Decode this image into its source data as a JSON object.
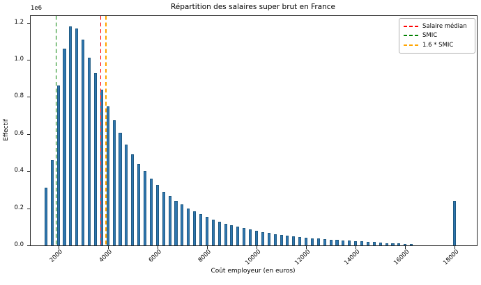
{
  "figure": {
    "title": "Répartition des salaires super brut en France",
    "xlabel": "Coût employeur (en euros)",
    "ylabel": "Effectif",
    "y_offset_label": "1e6",
    "background_color": "#ffffff",
    "spine_color": "#222222"
  },
  "chart_data": {
    "type": "bar",
    "title": "Répartition des salaires super brut en France",
    "xlabel": "Coût employeur (en euros)",
    "ylabel": "Effectif",
    "y_scale_offset": "1e6",
    "xlim": [
      885,
      18890
    ],
    "ylim": [
      0,
      1236000
    ],
    "grid": false,
    "x_ticks": [
      2000,
      4000,
      6000,
      8000,
      10000,
      12000,
      14000,
      16000,
      18000
    ],
    "x_tick_labels": [
      "2000",
      "4000",
      "6000",
      "8000",
      "10000",
      "12000",
      "14000",
      "16000",
      "18000"
    ],
    "y_ticks": [
      0,
      200000,
      400000,
      600000,
      800000,
      1000000,
      1200000
    ],
    "y_tick_labels": [
      "0.0",
      "0.2",
      "0.4",
      "0.6",
      "0.8",
      "1.0",
      "1.2"
    ],
    "bin_width": 250,
    "bar_draw_width": 115,
    "bar_color": "#3076af",
    "bar_edge_color": "#1f5a82",
    "bars": {
      "centers": [
        1500,
        1750,
        2000,
        2250,
        2500,
        2750,
        3000,
        3250,
        3500,
        3750,
        4000,
        4250,
        4500,
        4750,
        5000,
        5250,
        5500,
        5750,
        6000,
        6250,
        6500,
        6750,
        7000,
        7250,
        7500,
        7750,
        8000,
        8250,
        8500,
        8750,
        9000,
        9250,
        9500,
        9750,
        10000,
        10250,
        10500,
        10750,
        11000,
        11250,
        11500,
        11750,
        12000,
        12250,
        12500,
        12750,
        13000,
        13250,
        13500,
        13750,
        14000,
        14250,
        14500,
        14750,
        15000,
        15250,
        15500,
        15750,
        16000,
        16250,
        18000
      ],
      "counts": [
        310000,
        460000,
        860000,
        1060000,
        1180000,
        1170000,
        1110000,
        1010000,
        930000,
        840000,
        750000,
        675000,
        605000,
        545000,
        490000,
        440000,
        400000,
        360000,
        325000,
        290000,
        265000,
        240000,
        220000,
        200000,
        182000,
        167000,
        152000,
        139000,
        128000,
        118000,
        108000,
        100000,
        92000,
        85000,
        78000,
        72000,
        66000,
        61000,
        57000,
        53000,
        49000,
        45000,
        42000,
        39000,
        36000,
        33000,
        31000,
        29000,
        27000,
        25000,
        23000,
        21000,
        19000,
        17000,
        15000,
        13000,
        12000,
        10000,
        9000,
        8000,
        240000
      ]
    },
    "vlines": [
      {
        "key": "salaire-median",
        "label": "Salaire médian",
        "x": 3705,
        "color": "#ff0000",
        "style": "dashed"
      },
      {
        "key": "smic",
        "label": "SMIC",
        "x": 1920,
        "color": "#008000",
        "style": "dashed"
      },
      {
        "key": "1-6-smic",
        "label": "1.6 * SMIC",
        "x": 3920,
        "color": "#ffa500",
        "style": "dashed"
      }
    ],
    "legend": {
      "position": "upper right",
      "entries": [
        "Salaire médian",
        "SMIC",
        "1.6 * SMIC"
      ]
    }
  }
}
